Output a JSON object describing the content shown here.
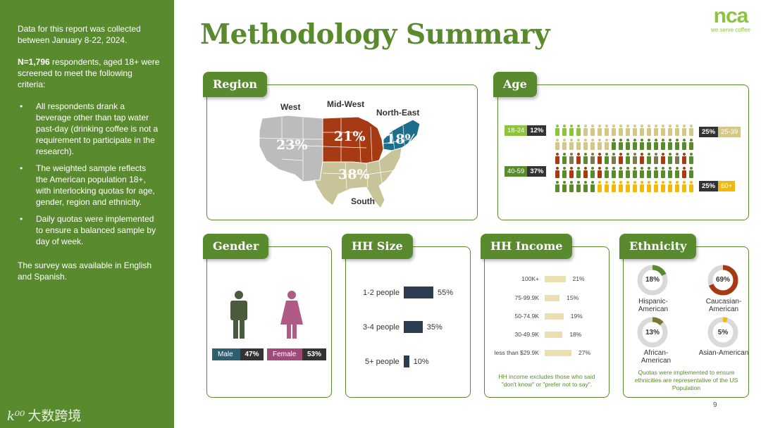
{
  "side": {
    "dates": "Data for this report was collected between January 8-22, 2024.",
    "n_bold": "N=1,796",
    "n_rest": " respondents, aged 18+ were screened to meet the following criteria:",
    "bullets": [
      "All respondents drank a beverage other than tap water past-day (drinking coffee is not a requirement to participate in the research).",
      "The weighted sample reflects the American population 18+, with interlocking quotas for age, gender, region and ethnicity.",
      "Daily quotas were implemented to ensure a balanced sample by day of week."
    ],
    "languages": "The survey was available in English and Spanish.",
    "watermark": "大数跨境"
  },
  "title": "Methodology Summary",
  "logo": {
    "name": "nca",
    "tagline": "we serve coffee"
  },
  "region": {
    "tag": "Region",
    "labels": {
      "west": "West",
      "midwest": "Mid-West",
      "northeast": "North-East",
      "south": "South"
    },
    "values": {
      "west": "23%",
      "midwest": "21%",
      "northeast": "18%",
      "south": "38%"
    },
    "colors": {
      "west": "#bcbcbc",
      "midwest": "#a63a12",
      "northeast": "#1c6e8c",
      "south": "#c9c39a"
    }
  },
  "age": {
    "tag": "Age",
    "groups": [
      {
        "name": "18-24",
        "pct": "12%",
        "color": "#8cc43f"
      },
      {
        "name": "25-39",
        "pct": "25%",
        "color": "#d4c78a"
      },
      {
        "name": "40-59",
        "pct": "37%",
        "color": "#5a8a2e"
      },
      {
        "name": "60+",
        "pct": "25%",
        "color": "#f0b90b"
      }
    ]
  },
  "gender": {
    "tag": "Gender",
    "male": {
      "label": "Male",
      "value": "47%",
      "color": "#2e5f6e"
    },
    "female": {
      "label": "Female",
      "value": "53%",
      "color": "#a04a7a"
    }
  },
  "hhsize": {
    "tag": "HH Size",
    "rows": [
      {
        "label": "1-2 people",
        "value": 55,
        "text": "55%"
      },
      {
        "label": "3-4 people",
        "value": 35,
        "text": "35%"
      },
      {
        "label": "5+ people",
        "value": 10,
        "text": "10%"
      }
    ]
  },
  "income": {
    "tag": "HH Income",
    "rows": [
      {
        "label": "100K+",
        "value": 21,
        "text": "21%"
      },
      {
        "label": "75-99.9K",
        "value": 15,
        "text": "15%"
      },
      {
        "label": "50-74.9K",
        "value": 19,
        "text": "19%"
      },
      {
        "label": "30-49.9K",
        "value": 18,
        "text": "18%"
      },
      {
        "label": "less than $29.9K",
        "value": 27,
        "text": "27%"
      }
    ],
    "note": "HH income excludes those who said \"don't know\" or \"prefer not to say\"."
  },
  "ethnicity": {
    "tag": "Ethnicity",
    "items": [
      {
        "label": "Hispanic-American",
        "value": 18,
        "text": "18%",
        "color": "#5a8a2e"
      },
      {
        "label": "Caucasian-American",
        "value": 69,
        "text": "69%",
        "color": "#a63a12"
      },
      {
        "label": "African-American",
        "value": 13,
        "text": "13%",
        "color": "#7a7a2e"
      },
      {
        "label": "Asian-American",
        "value": 5,
        "text": "5%",
        "color": "#f0b90b"
      }
    ],
    "note": "Quotas were implemented to ensure ethnicities are representative of the US Population"
  },
  "page_number": "9"
}
